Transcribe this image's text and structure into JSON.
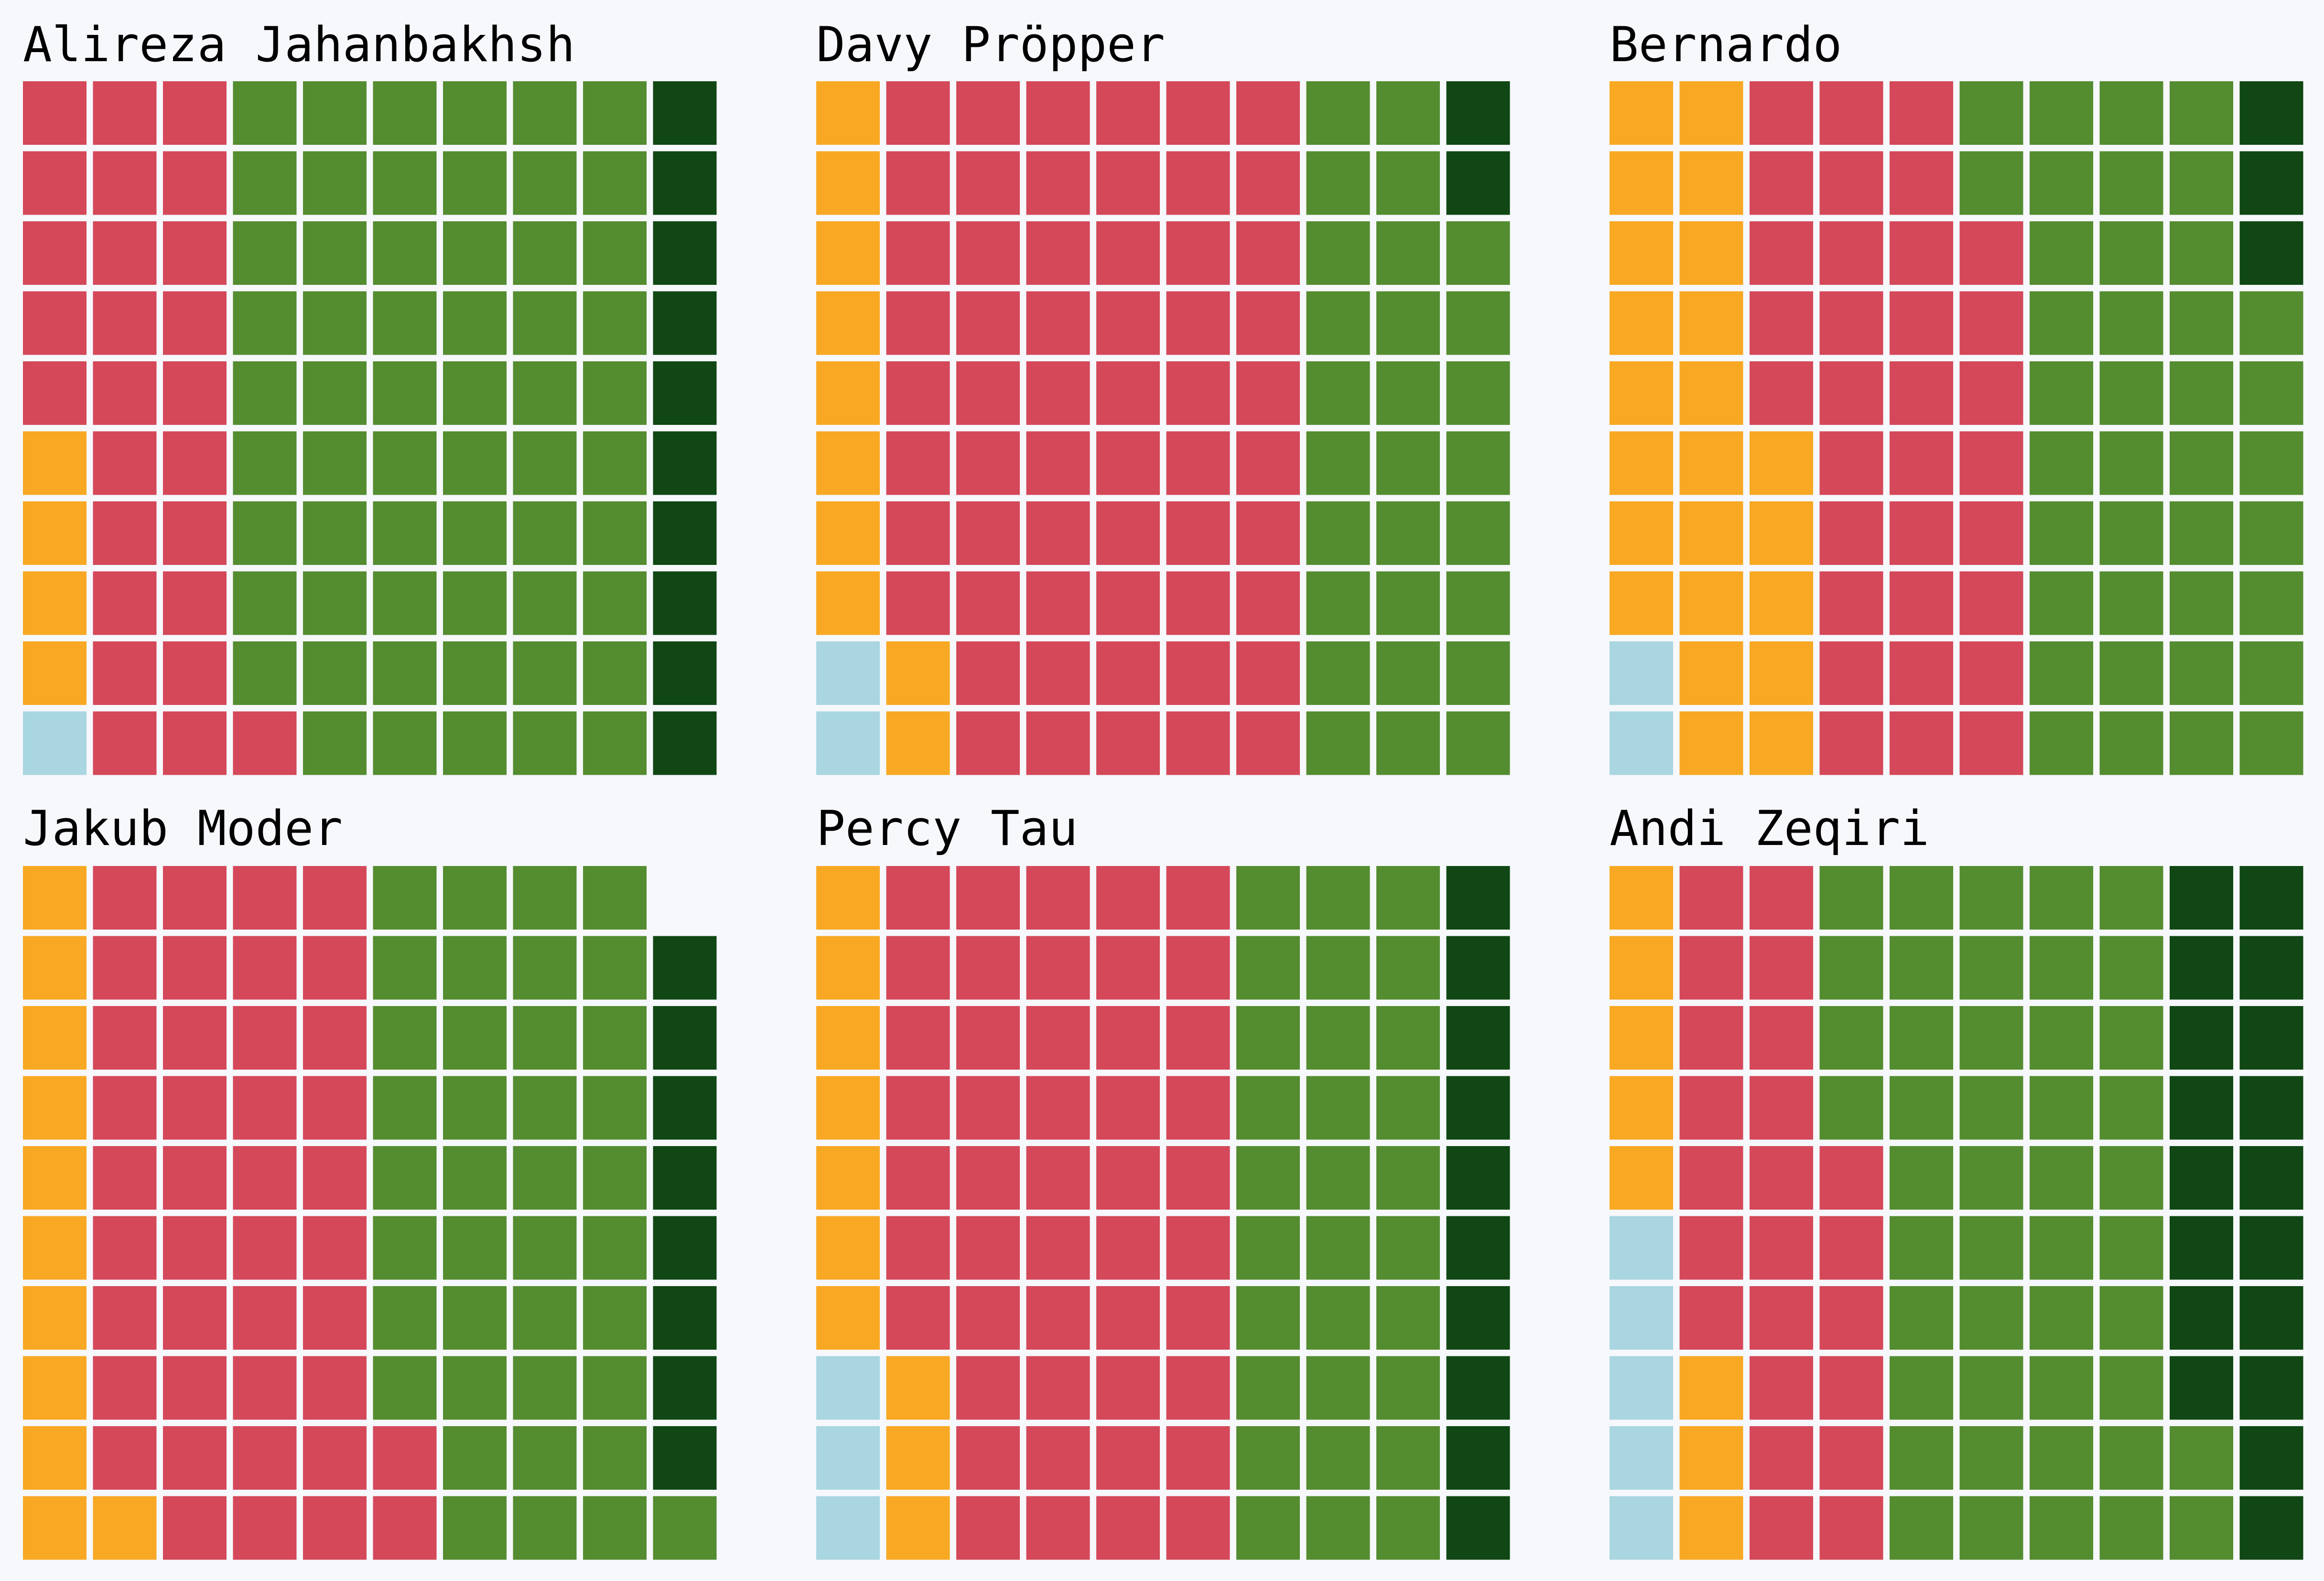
{
  "chart_data": {
    "type": "waffle",
    "grid": {
      "rows": 10,
      "columns": 10
    },
    "fill_order": "column-major, starting bottom-left, filling upward then rightward",
    "category_colors": {
      "light_blue": "#a9d6e0",
      "orange": "#f8a823",
      "red": "#d4485a",
      "green": "#548c30",
      "dark_green": "#104714"
    },
    "panels": [
      {
        "title": "Alireza Jahanbakhsh",
        "counts": [
          1,
          4,
          26,
          59,
          10
        ]
      },
      {
        "title": "Davy Pröpper",
        "counts": [
          2,
          10,
          58,
          28,
          2
        ]
      },
      {
        "title": "Bernardo",
        "counts": [
          2,
          23,
          33,
          39,
          3
        ]
      },
      {
        "title": "Jakub Moder",
        "counts": [
          0,
          11,
          41,
          39,
          8
        ]
      },
      {
        "title": "Percy Tau",
        "counts": [
          3,
          10,
          47,
          30,
          10
        ]
      },
      {
        "title": "Andi Zeqiri",
        "counts": [
          5,
          8,
          23,
          46,
          18
        ]
      }
    ]
  }
}
